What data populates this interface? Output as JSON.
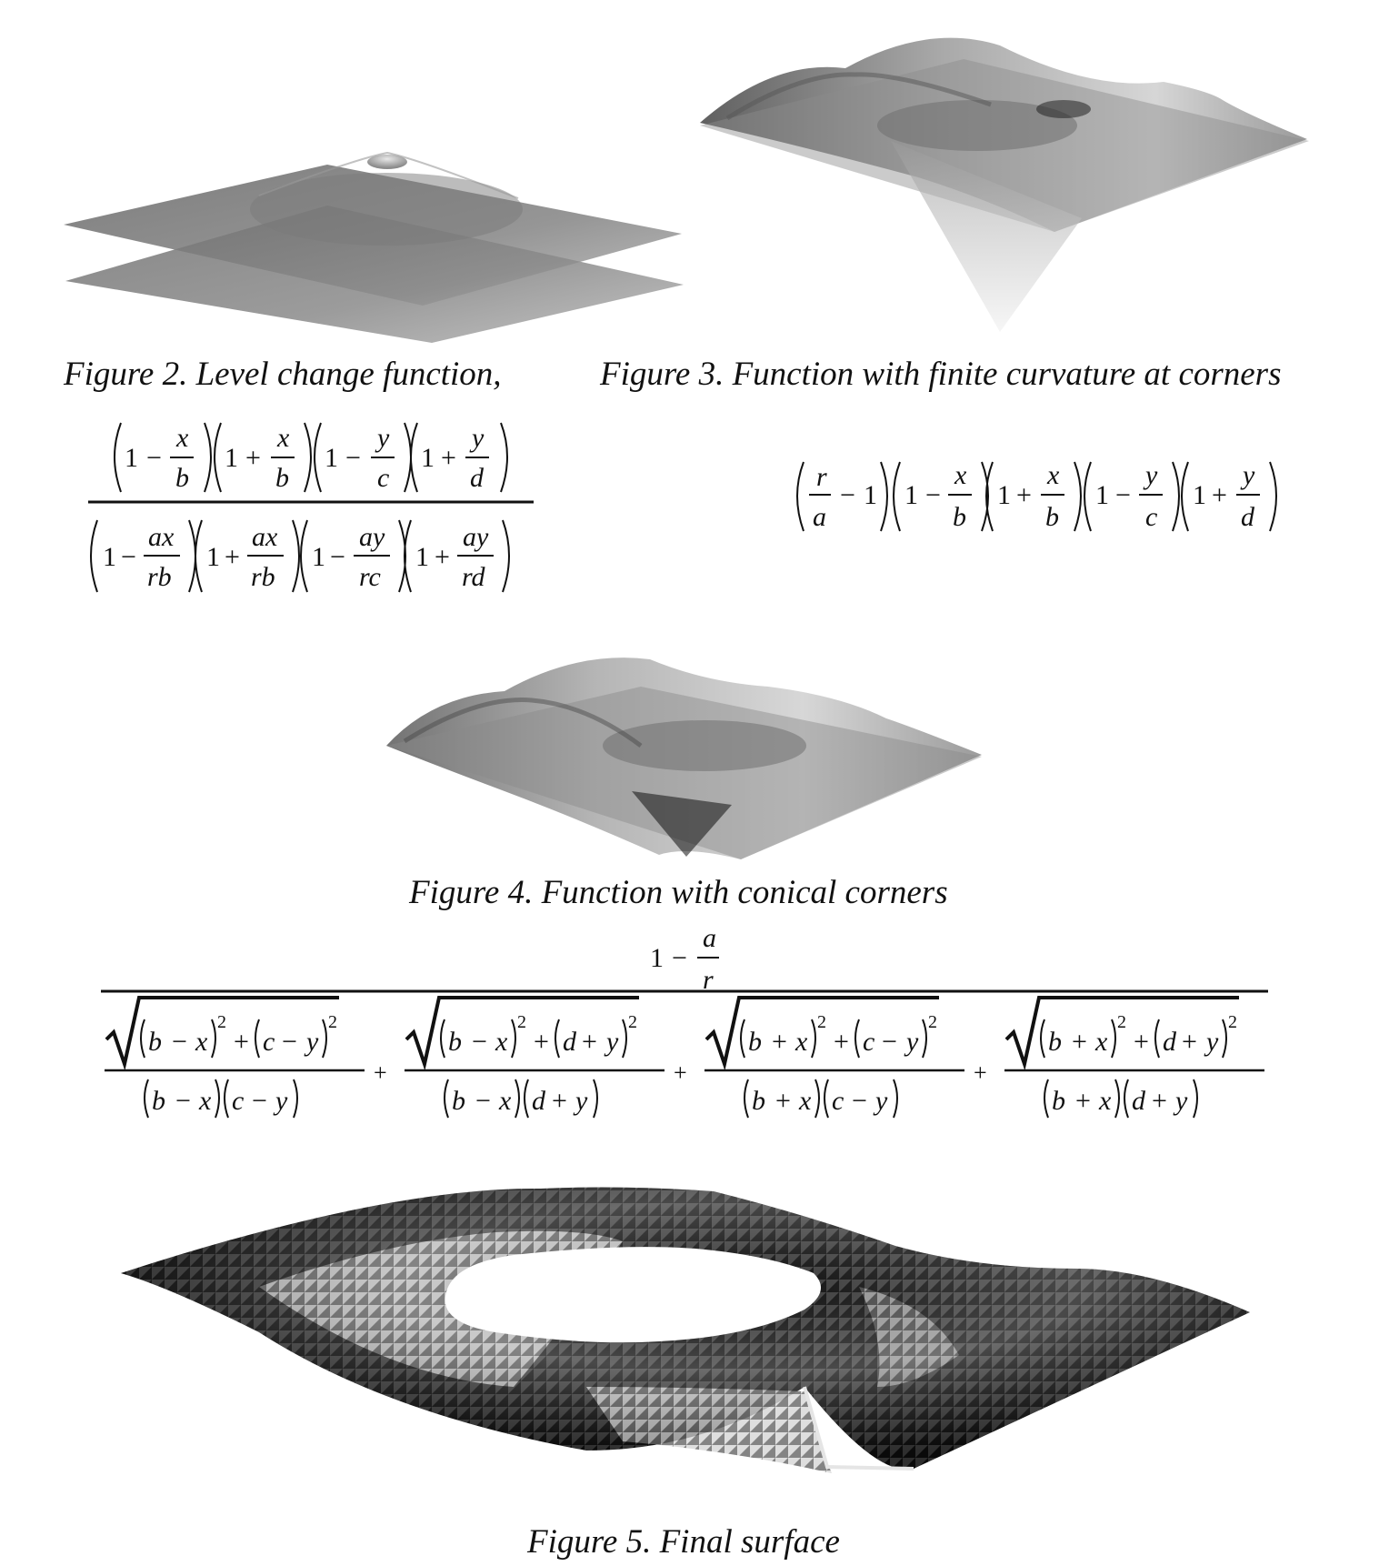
{
  "figures": [
    {
      "id": "fig2",
      "caption": "Figure 2. Level change function,"
    },
    {
      "id": "fig3",
      "caption": "Figure 3. Function with finite curvature at corners"
    },
    {
      "id": "fig4",
      "caption": "Figure 4. Function with conical corners"
    },
    {
      "id": "fig5",
      "caption": "Figure 5. Final surface"
    }
  ],
  "symbols": {
    "one": "1",
    "minus": "−",
    "plus": "+",
    "two": "2",
    "x": "x",
    "y": "y",
    "a": "a",
    "b": "b",
    "c": "c",
    "d": "d",
    "r": "r",
    "ax": "ax",
    "ay": "ay",
    "rb": "rb",
    "rc": "rc",
    "rd": "rd"
  }
}
